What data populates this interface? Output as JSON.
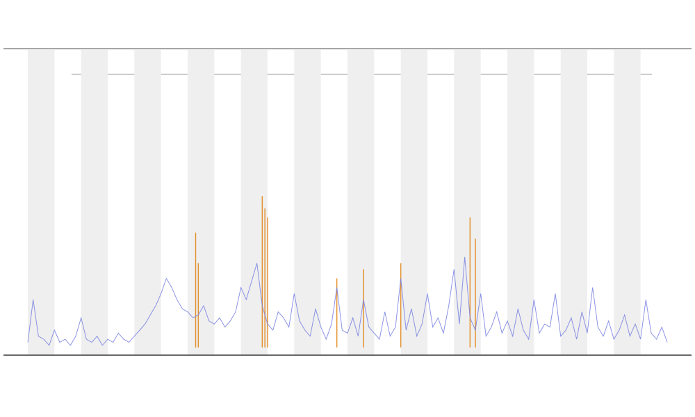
{
  "chart_data": {
    "type": "line",
    "color": "#6f78e0",
    "xlim": [
      0,
      120
    ],
    "ylim": [
      0,
      100
    ],
    "bands": {
      "color": "#efefef",
      "start": [
        0,
        10,
        20,
        30,
        40,
        50,
        60,
        70,
        80,
        90,
        100,
        110
      ],
      "end": [
        5,
        15,
        25,
        35,
        45,
        55,
        65,
        75,
        85,
        95,
        105,
        115
      ]
    },
    "x": [
      0,
      1,
      2,
      3,
      4,
      5,
      6,
      7,
      8,
      9,
      10,
      11,
      12,
      13,
      14,
      15,
      16,
      17,
      18,
      19,
      20,
      21,
      22,
      23,
      24,
      25,
      26,
      27,
      28,
      29,
      30,
      31,
      32,
      33,
      34,
      35,
      36,
      37,
      38,
      39,
      40,
      41,
      42,
      43,
      44,
      45,
      46,
      47,
      48,
      49,
      50,
      51,
      52,
      53,
      54,
      55,
      56,
      57,
      58,
      59,
      60,
      61,
      62,
      63,
      64,
      65,
      66,
      67,
      68,
      69,
      70,
      71,
      72,
      73,
      74,
      75,
      76,
      77,
      78,
      79,
      80,
      81,
      82,
      83,
      84,
      85,
      86,
      87,
      88,
      89,
      90,
      91,
      92,
      93,
      94,
      95,
      96,
      97,
      98,
      99,
      100,
      101,
      102,
      103,
      104,
      105,
      106,
      107,
      108,
      109,
      110,
      111,
      112,
      113,
      114,
      115,
      116,
      117,
      118,
      119,
      120
    ],
    "values": [
      4,
      18,
      6,
      5,
      3,
      8,
      4,
      5,
      3,
      6,
      12,
      5,
      4,
      6,
      3,
      5,
      4,
      7,
      5,
      4,
      6,
      8,
      10,
      13,
      16,
      20,
      25,
      22,
      18,
      15,
      14,
      12,
      13,
      16,
      11,
      10,
      12,
      9,
      11,
      14,
      22,
      18,
      24,
      30,
      16,
      10,
      8,
      14,
      12,
      9,
      20,
      11,
      8,
      6,
      15,
      9,
      5,
      10,
      22,
      8,
      7,
      12,
      6,
      18,
      9,
      7,
      5,
      14,
      6,
      9,
      25,
      8,
      15,
      6,
      10,
      20,
      9,
      12,
      7,
      16,
      28,
      10,
      32,
      12,
      8,
      20,
      6,
      9,
      14,
      7,
      11,
      6,
      15,
      8,
      5,
      18,
      7,
      10,
      9,
      20,
      6,
      8,
      12,
      5,
      14,
      7,
      22,
      9,
      6,
      11,
      5,
      8,
      13,
      6,
      10,
      5,
      18,
      7,
      5,
      9,
      4
    ],
    "spikes": {
      "color": "#e07b00",
      "x": [
        31.5,
        32,
        44,
        44.5,
        45,
        58,
        63,
        70,
        83,
        84
      ],
      "values": [
        40,
        30,
        52,
        48,
        45,
        25,
        28,
        30,
        45,
        38
      ]
    }
  }
}
